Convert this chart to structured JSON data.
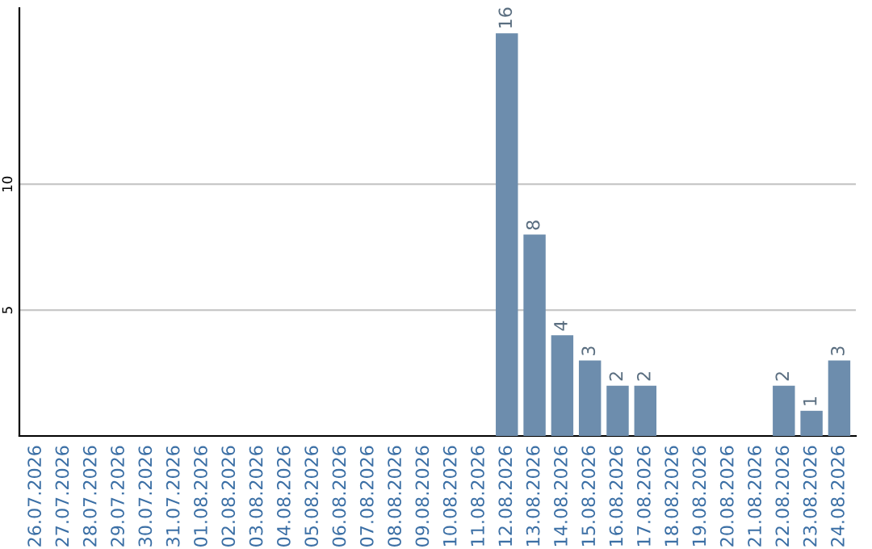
{
  "chart_data": {
    "type": "bar",
    "categories": [
      "26.07.2026",
      "27.07.2026",
      "28.07.2026",
      "29.07.2026",
      "30.07.2026",
      "31.07.2026",
      "01.08.2026",
      "02.08.2026",
      "03.08.2026",
      "04.08.2026",
      "05.08.2026",
      "06.08.2026",
      "07.08.2026",
      "08.08.2026",
      "09.08.2026",
      "10.08.2026",
      "11.08.2026",
      "12.08.2026",
      "13.08.2026",
      "14.08.2026",
      "15.08.2026",
      "16.08.2026",
      "17.08.2026",
      "18.08.2026",
      "19.08.2026",
      "20.08.2026",
      "21.08.2026",
      "22.08.2026",
      "23.08.2026",
      "24.08.2026"
    ],
    "values": [
      0,
      0,
      0,
      0,
      0,
      0,
      0,
      0,
      0,
      0,
      0,
      0,
      0,
      0,
      0,
      0,
      0,
      16,
      8,
      4,
      3,
      2,
      2,
      0,
      0,
      0,
      0,
      2,
      1,
      3
    ],
    "value_labels": [
      null,
      null,
      null,
      null,
      null,
      null,
      null,
      null,
      null,
      null,
      null,
      null,
      null,
      null,
      null,
      null,
      null,
      "16",
      "8",
      "4",
      "3",
      "2",
      "2",
      null,
      null,
      null,
      null,
      "2",
      "1",
      "3"
    ],
    "color": "#6d8dad",
    "ylim": [
      0,
      17
    ],
    "yticks": [
      5,
      10
    ],
    "grid": "y"
  }
}
